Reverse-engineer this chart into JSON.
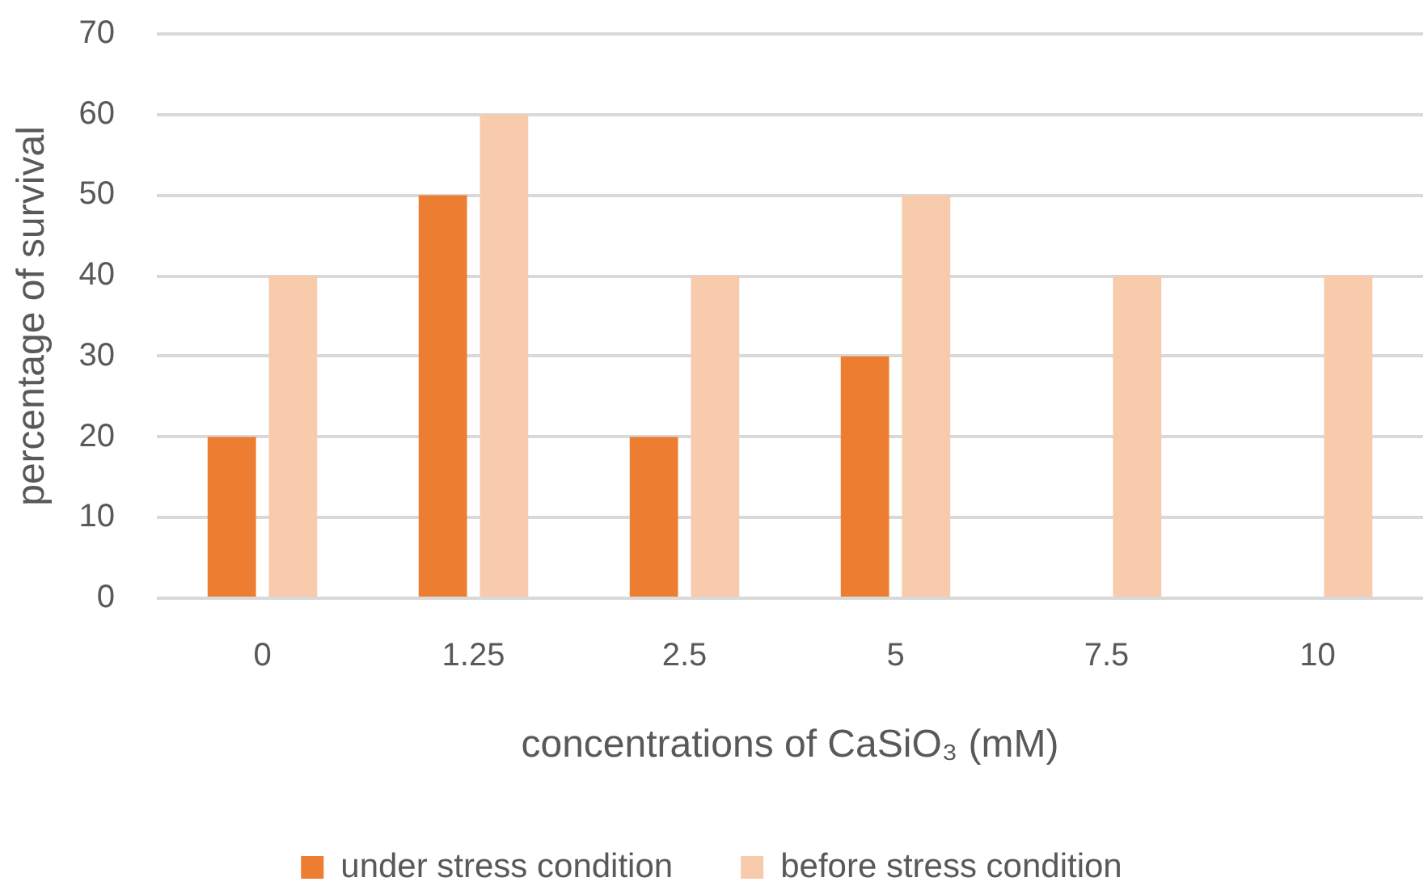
{
  "chart_data": {
    "type": "bar",
    "xlabel": "concentrations of CaSiO₃ (mM)",
    "ylabel": "percentage of survival",
    "categories": [
      "0",
      "1.25",
      "2.5",
      "5",
      "7.5",
      "10"
    ],
    "series": [
      {
        "name": "under stress condition",
        "color": "#ed7d31",
        "values": [
          20,
          50,
          20,
          30,
          0,
          0
        ]
      },
      {
        "name": "before stress condition",
        "color": "#f8cbad",
        "values": [
          40,
          60,
          40,
          50,
          40,
          40
        ]
      }
    ],
    "ylim": [
      0,
      70
    ],
    "yticks": [
      0,
      10,
      20,
      30,
      40,
      50,
      60,
      70
    ],
    "grid": "y",
    "legend": "bottom"
  }
}
